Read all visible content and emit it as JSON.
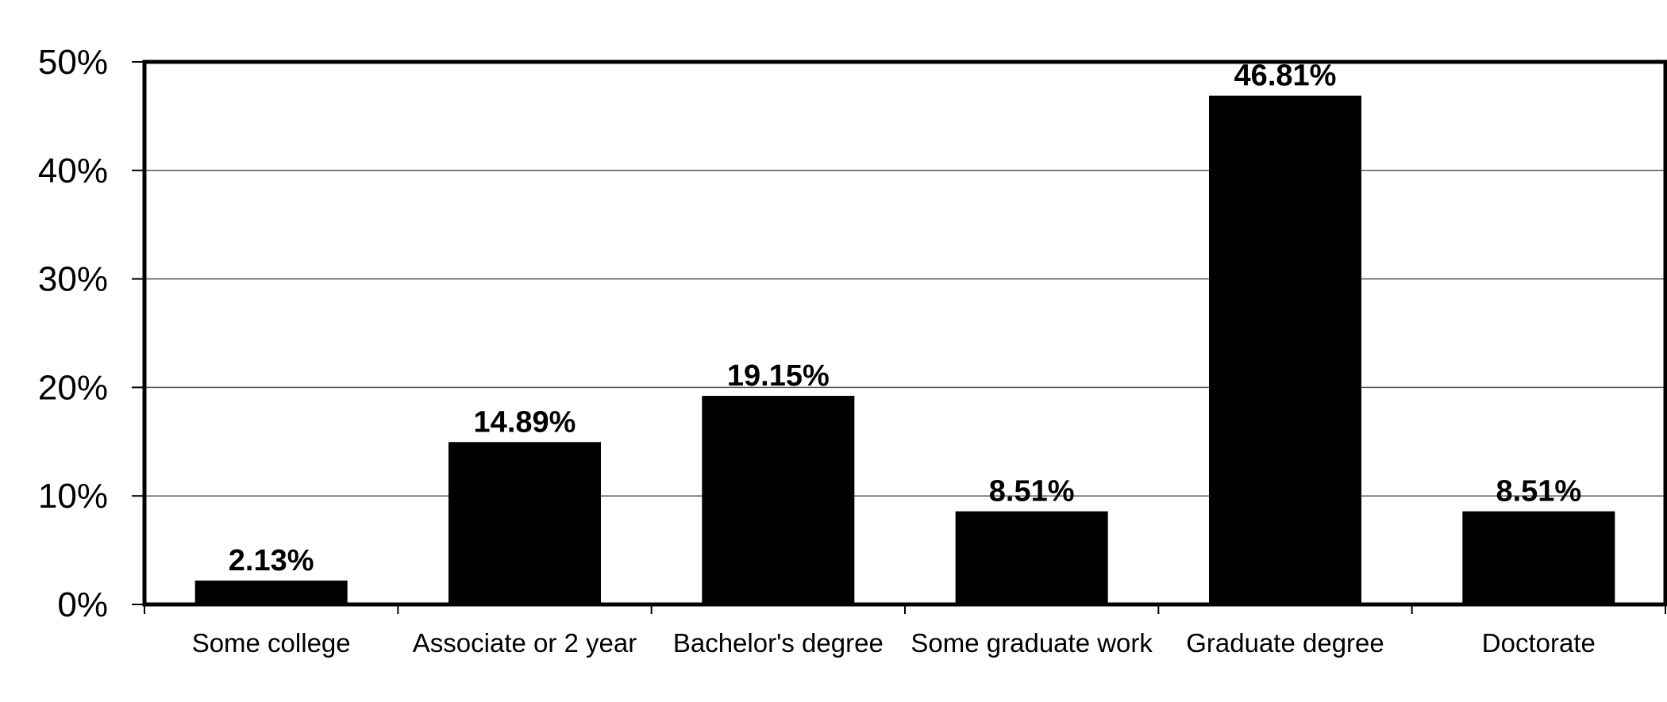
{
  "chart_data": {
    "type": "bar",
    "categories": [
      "Some college",
      "Associate or 2 year",
      "Bachelor's degree",
      "Some graduate work",
      "Graduate degree",
      "Doctorate"
    ],
    "values": [
      2.13,
      14.89,
      19.15,
      8.51,
      46.81,
      8.51
    ],
    "data_labels": [
      "2.13%",
      "14.89%",
      "19.15%",
      "8.51%",
      "46.81%",
      "8.51%"
    ],
    "yticks": [
      0,
      10,
      20,
      30,
      40,
      50
    ],
    "ytick_labels": [
      "0%",
      "10%",
      "20%",
      "30%",
      "40%",
      "50%"
    ],
    "ylim": [
      0,
      50
    ],
    "title": "",
    "xlabel": "",
    "ylabel": "",
    "grid": true,
    "legend": "none",
    "bar_color": "#000000"
  }
}
